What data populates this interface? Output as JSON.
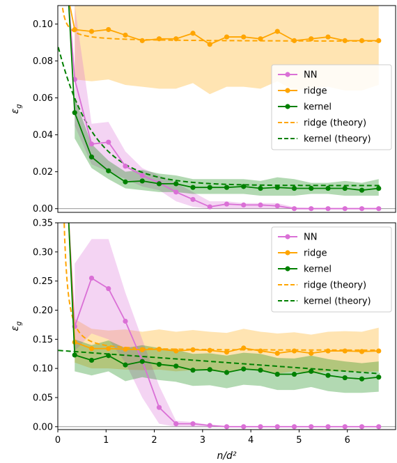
{
  "chart_data": [
    {
      "type": "line",
      "panel": "top",
      "ylabel": "ε_g",
      "xlabel": "",
      "xlim": [
        0,
        7.0
      ],
      "ylim": [
        -0.002,
        0.11
      ],
      "yticks": [
        "0.00",
        "0.02",
        "0.04",
        "0.06",
        "0.08",
        "0.10"
      ],
      "ytick_values": [
        0.0,
        0.02,
        0.04,
        0.06,
        0.08,
        0.1
      ],
      "xticks": [],
      "grid": false,
      "legend_position": "center-right",
      "legend": [
        {
          "label": "NN",
          "style": "solid-marker",
          "color": "#da70d6"
        },
        {
          "label": "ridge",
          "style": "solid-marker",
          "color": "#ffa500"
        },
        {
          "label": "kernel",
          "style": "solid-marker",
          "color": "#008000"
        },
        {
          "label": "ridge (theory)",
          "style": "dashed",
          "color": "#ffa500"
        },
        {
          "label": "kernel (theory)",
          "style": "dashed",
          "color": "#008000"
        }
      ],
      "x": [
        0.35,
        0.7,
        1.05,
        1.4,
        1.75,
        2.1,
        2.45,
        2.8,
        3.15,
        3.5,
        3.85,
        4.2,
        4.55,
        4.9,
        5.25,
        5.6,
        5.95,
        6.3,
        6.65
      ],
      "series": [
        {
          "name": "NN",
          "color": "#da70d6",
          "values": [
            0.07,
            0.035,
            0.036,
            0.023,
            0.018,
            0.014,
            0.009,
            0.005,
            0.001,
            0.0025,
            0.002,
            0.002,
            0.0015,
            0.0,
            0.0,
            0.0,
            0.0,
            0.0,
            0.0
          ],
          "band_low": [
            0.045,
            0.024,
            0.02,
            0.016,
            0.012,
            0.01,
            0.004,
            0.001,
            0.0,
            0.0,
            0.0,
            0.0,
            0.0,
            0.0,
            0.0,
            0.0,
            0.0,
            0.0,
            0.0
          ],
          "band_high": [
            0.11,
            0.046,
            0.047,
            0.031,
            0.022,
            0.018,
            0.014,
            0.009,
            0.004,
            0.004,
            0.003,
            0.003,
            0.003,
            0.0008,
            0.0005,
            0.0005,
            0.0005,
            0.0005,
            0.0005
          ]
        },
        {
          "name": "ridge",
          "color": "#ffa500",
          "values": [
            0.097,
            0.096,
            0.097,
            0.094,
            0.091,
            0.092,
            0.092,
            0.095,
            0.089,
            0.093,
            0.093,
            0.092,
            0.096,
            0.091,
            0.092,
            0.093,
            0.091,
            0.091,
            0.091
          ],
          "band_low": [
            0.07,
            0.069,
            0.07,
            0.067,
            0.066,
            0.065,
            0.065,
            0.068,
            0.062,
            0.066,
            0.066,
            0.065,
            0.069,
            0.064,
            0.065,
            0.066,
            0.064,
            0.064,
            0.067
          ],
          "band_high": [
            0.115,
            0.115,
            0.115,
            0.115,
            0.115,
            0.115,
            0.115,
            0.115,
            0.115,
            0.115,
            0.115,
            0.115,
            0.115,
            0.115,
            0.115,
            0.115,
            0.115,
            0.115,
            0.115
          ]
        },
        {
          "name": "kernel",
          "color": "#008000",
          "values": [
            0.052,
            0.028,
            0.0205,
            0.0145,
            0.015,
            0.0135,
            0.0135,
            0.0115,
            0.0115,
            0.0115,
            0.012,
            0.011,
            0.0115,
            0.011,
            0.011,
            0.011,
            0.011,
            0.01,
            0.011
          ],
          "band_low": [
            0.038,
            0.022,
            0.016,
            0.011,
            0.01,
            0.009,
            0.009,
            0.008,
            0.008,
            0.008,
            0.008,
            0.007,
            0.007,
            0.007,
            0.008,
            0.008,
            0.007,
            0.007,
            0.007
          ],
          "band_high": [
            0.06,
            0.035,
            0.026,
            0.02,
            0.021,
            0.019,
            0.018,
            0.016,
            0.016,
            0.016,
            0.016,
            0.015,
            0.017,
            0.016,
            0.014,
            0.014,
            0.015,
            0.014,
            0.016
          ]
        }
      ],
      "theory": [
        {
          "name": "ridge (theory)",
          "color": "#ffa500",
          "fn": "ridge_top"
        },
        {
          "name": "kernel (theory)",
          "color": "#008000",
          "fn": "kernel_top"
        }
      ]
    },
    {
      "type": "line",
      "panel": "bottom",
      "ylabel": "ε_g",
      "xlabel": "n/d²",
      "xlim": [
        0,
        7.0
      ],
      "ylim": [
        -0.005,
        0.35
      ],
      "yticks": [
        "0.00",
        "0.05",
        "0.10",
        "0.15",
        "0.20",
        "0.25",
        "0.30",
        "0.35"
      ],
      "ytick_values": [
        0.0,
        0.05,
        0.1,
        0.15,
        0.2,
        0.25,
        0.3,
        0.35
      ],
      "xticks": [
        "0",
        "1",
        "2",
        "3",
        "4",
        "5",
        "6"
      ],
      "xtick_values": [
        0,
        1,
        2,
        3,
        4,
        5,
        6
      ],
      "grid": false,
      "legend_position": "top-right",
      "legend": [
        {
          "label": "NN",
          "style": "solid-marker",
          "color": "#da70d6"
        },
        {
          "label": "ridge",
          "style": "solid-marker",
          "color": "#ffa500"
        },
        {
          "label": "kernel",
          "style": "solid-marker",
          "color": "#008000"
        },
        {
          "label": "ridge (theory)",
          "style": "dashed",
          "color": "#ffa500"
        },
        {
          "label": "kernel (theory)",
          "style": "dashed",
          "color": "#008000"
        }
      ],
      "x": [
        0.35,
        0.7,
        1.05,
        1.4,
        1.75,
        2.1,
        2.45,
        2.8,
        3.15,
        3.5,
        3.85,
        4.2,
        4.55,
        4.9,
        5.25,
        5.6,
        5.95,
        6.3,
        6.65
      ],
      "series": [
        {
          "name": "NN",
          "color": "#da70d6",
          "values": [
            0.172,
            0.255,
            0.237,
            0.181,
            0.113,
            0.033,
            0.005,
            0.005,
            0.002,
            0.0,
            0.0,
            0.0,
            0.0,
            0.0,
            0.0,
            0.0,
            0.0,
            0.0,
            0.0
          ],
          "band_low": [
            0.13,
            0.16,
            0.15,
            0.11,
            0.05,
            0.005,
            0.0,
            0.0,
            0.0,
            0.0,
            0.0,
            0.0,
            0.0,
            0.0,
            0.0,
            0.0,
            0.0,
            0.0,
            0.0
          ],
          "band_high": [
            0.28,
            0.322,
            0.322,
            0.23,
            0.15,
            0.07,
            0.01,
            0.008,
            0.003,
            0.001,
            0.001,
            0.001,
            0.001,
            0.001,
            0.001,
            0.001,
            0.001,
            0.001,
            0.001
          ]
        },
        {
          "name": "ridge",
          "color": "#ffa500",
          "values": [
            0.145,
            0.134,
            0.134,
            0.133,
            0.132,
            0.133,
            0.13,
            0.132,
            0.131,
            0.128,
            0.135,
            0.13,
            0.126,
            0.13,
            0.126,
            0.13,
            0.13,
            0.129,
            0.13
          ],
          "band_low": [
            0.11,
            0.1,
            0.1,
            0.098,
            0.097,
            0.098,
            0.095,
            0.097,
            0.096,
            0.093,
            0.1,
            0.095,
            0.091,
            0.095,
            0.091,
            0.095,
            0.095,
            0.094,
            0.095
          ],
          "band_high": [
            0.185,
            0.168,
            0.165,
            0.167,
            0.163,
            0.167,
            0.163,
            0.166,
            0.163,
            0.161,
            0.168,
            0.163,
            0.16,
            0.162,
            0.158,
            0.163,
            0.164,
            0.163,
            0.17
          ]
        },
        {
          "name": "kernel",
          "color": "#008000",
          "values": [
            0.123,
            0.114,
            0.122,
            0.106,
            0.112,
            0.107,
            0.104,
            0.097,
            0.098,
            0.093,
            0.099,
            0.097,
            0.09,
            0.09,
            0.095,
            0.088,
            0.084,
            0.082,
            0.085
          ],
          "band_low": [
            0.095,
            0.088,
            0.095,
            0.078,
            0.085,
            0.08,
            0.077,
            0.07,
            0.071,
            0.066,
            0.072,
            0.07,
            0.063,
            0.063,
            0.068,
            0.061,
            0.058,
            0.058,
            0.06
          ],
          "band_high": [
            0.15,
            0.14,
            0.148,
            0.135,
            0.14,
            0.135,
            0.132,
            0.125,
            0.126,
            0.122,
            0.127,
            0.125,
            0.118,
            0.117,
            0.122,
            0.116,
            0.112,
            0.109,
            0.112
          ]
        }
      ],
      "theory": [
        {
          "name": "ridge (theory)",
          "color": "#ffa500",
          "fn": "ridge_bottom"
        },
        {
          "name": "kernel (theory)",
          "color": "#008000",
          "fn": "kernel_bottom"
        }
      ]
    }
  ]
}
